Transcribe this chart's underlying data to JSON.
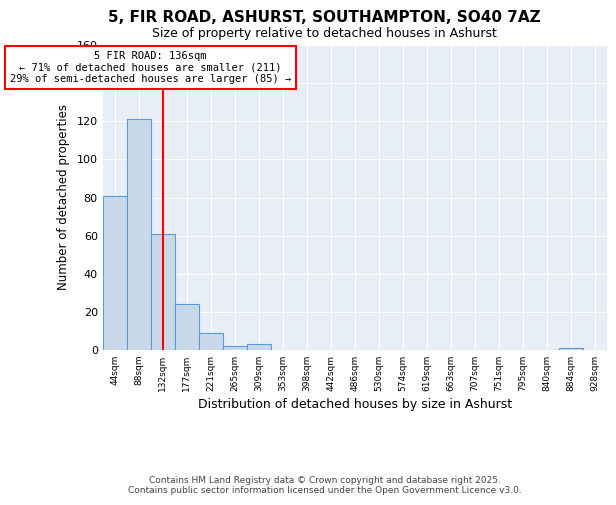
{
  "title1": "5, FIR ROAD, ASHURST, SOUTHAMPTON, SO40 7AZ",
  "title2": "Size of property relative to detached houses in Ashurst",
  "xlabel": "Distribution of detached houses by size in Ashurst",
  "ylabel": "Number of detached properties",
  "categories": [
    "44sqm",
    "88sqm",
    "132sqm",
    "177sqm",
    "221sqm",
    "265sqm",
    "309sqm",
    "353sqm",
    "398sqm",
    "442sqm",
    "486sqm",
    "530sqm",
    "574sqm",
    "619sqm",
    "663sqm",
    "707sqm",
    "751sqm",
    "795sqm",
    "840sqm",
    "884sqm",
    "928sqm"
  ],
  "values": [
    81,
    121,
    61,
    24,
    9,
    2,
    3,
    0,
    0,
    0,
    0,
    0,
    0,
    0,
    0,
    0,
    0,
    0,
    0,
    1,
    0
  ],
  "bar_color": "#c8daea",
  "bar_edge_color": "#5b9bd5",
  "red_line_index": 2,
  "annotation_title": "5 FIR ROAD: 136sqm",
  "annotation_line1": "← 71% of detached houses are smaller (211)",
  "annotation_line2": "29% of semi-detached houses are larger (85) →",
  "ylim": [
    0,
    160
  ],
  "yticks": [
    0,
    20,
    40,
    60,
    80,
    100,
    120,
    140,
    160
  ],
  "footer1": "Contains HM Land Registry data © Crown copyright and database right 2025.",
  "footer2": "Contains public sector information licensed under the Open Government Licence v3.0.",
  "bg_color": "#ffffff",
  "plot_bg_color": "#e8eef5",
  "grid_color": "#ffffff",
  "title1_fontsize": 11,
  "title2_fontsize": 9
}
